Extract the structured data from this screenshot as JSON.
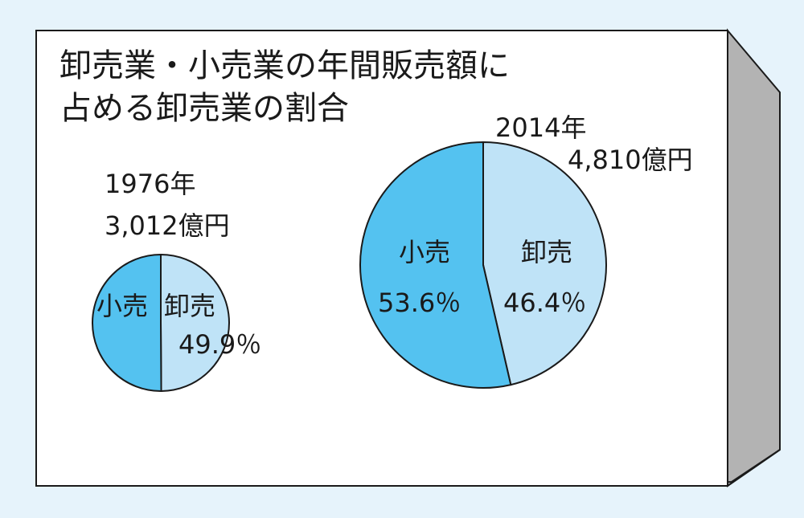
{
  "colors": {
    "background": "#e6f3fb",
    "panel": "#ffffff",
    "panel_side": "#b3b3b3",
    "wholesale": "#bfe3f7",
    "retail": "#54c2f0",
    "outline": "#1a1a1a"
  },
  "chart_data": [
    {
      "type": "pie",
      "title": "卸売業・小売業の年間販売額に占める卸売業の割合",
      "title_lines": [
        "卸売業・小売業の年間販売額に",
        "占める卸売業の割合"
      ],
      "year_label": "1976年",
      "total_label": "3,012億円",
      "slices": [
        {
          "name": "卸売",
          "value": 49.9,
          "percent_label": "49.9％",
          "color": "#bfe3f7"
        },
        {
          "name": "小売",
          "value": 50.1,
          "color": "#54c2f0"
        }
      ]
    },
    {
      "type": "pie",
      "year_label": "2014年",
      "total_label": "4,810億円",
      "slices": [
        {
          "name": "卸売",
          "value": 46.4,
          "percent_label": "46.4％",
          "color": "#bfe3f7"
        },
        {
          "name": "小売",
          "value": 53.6,
          "percent_label": "53.6％",
          "color": "#54c2f0"
        }
      ]
    }
  ]
}
